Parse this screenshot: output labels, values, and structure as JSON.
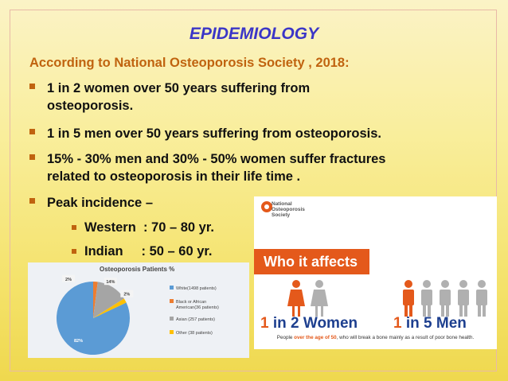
{
  "slide": {
    "title": "EPIDEMIOLOGY",
    "subtitle": "According to National Osteoporosis Society , 2018:",
    "bullets": [
      "1  in  2  women  over  50  years  suffering  from",
      "osteoporosis.",
      "1 in 5 men over 50 years suffering from  osteoporosis.",
      "15% - 30% men and 30% - 50% women suffer fractures",
      "related to osteoporosis in their life time .",
      "Peak incidence –"
    ],
    "sub_bullets": [
      "Western  : 70 – 80 yr.",
      "Indian     : 50 – 60 yr."
    ],
    "colors": {
      "title": "#3b36c7",
      "subtitle": "#c0630f",
      "accent": "#e4591b"
    }
  },
  "pie_chart": {
    "title": "Osteoporosis Patients %",
    "legend": [
      {
        "label": "White(1498 patients)",
        "color": "#5b9bd5"
      },
      {
        "label": "Black or African American(36 patients)",
        "color": "#ed7d31"
      },
      {
        "label": "Asian (257 patients)",
        "color": "#a5a5a5"
      },
      {
        "label": "Other (38 patients)",
        "color": "#ffc000"
      }
    ],
    "slice_labels": [
      "82%",
      "2%",
      "14%",
      "2%"
    ]
  },
  "chart_data": {
    "type": "pie",
    "title": "Osteoporosis Patients %",
    "categories": [
      "White(1498 patients)",
      "Black or African American(36 patients)",
      "Asian (257 patients)",
      "Other (38 patients)"
    ],
    "values": [
      82,
      2,
      14,
      2
    ],
    "legend_position": "right"
  },
  "affects": {
    "logo_lines": [
      "National",
      "Osteoporosis",
      "Society"
    ],
    "heading": "Who it affects",
    "stat_women_prefix": "1",
    "stat_women_rest": " in 2 Women",
    "stat_men_prefix": "1",
    "stat_men_rest": " in 5 Men",
    "footer_pre": "People ",
    "footer_bold": "over the age of 50",
    "footer_post": ", who will break a bone mainly as a result of poor bone health."
  }
}
